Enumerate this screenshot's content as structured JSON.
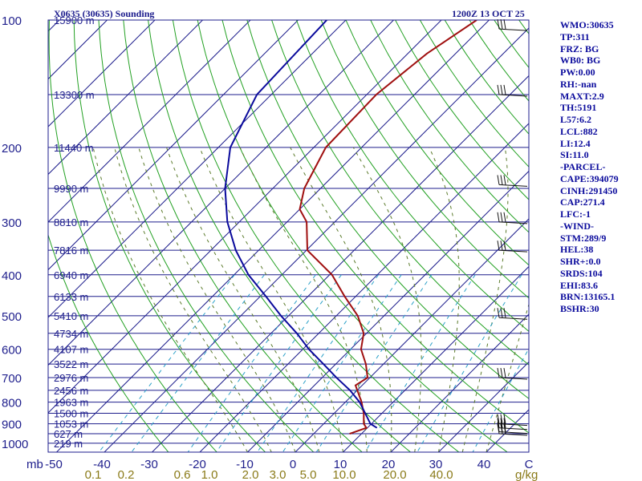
{
  "title_left": "X0635 (30635) Sounding",
  "title_right": "1200Z 13 OCT 25",
  "chart_data": {
    "type": "line",
    "diagram": "skew-T log-P",
    "pressure_axis": {
      "unit_label": "mb",
      "ticks": [
        100,
        200,
        300,
        400,
        500,
        600,
        700,
        800,
        900,
        1000
      ],
      "range": [
        100,
        1050
      ],
      "scale": "log"
    },
    "temperature_axis": {
      "ticks": [
        "-50",
        "-40",
        "-30",
        "-20",
        "-10",
        "0",
        "10",
        "20",
        "30",
        "40",
        "C"
      ]
    },
    "mixing_ratio_axis": {
      "ticks": [
        "0.1",
        "0.2",
        "0.6",
        "1.0",
        "2.0",
        "3.0",
        "5.0",
        "10.0",
        "20.0",
        "40.0"
      ],
      "unit_label": "g/kg"
    },
    "height_labels": [
      {
        "p": 100,
        "label": "15900 m"
      },
      {
        "p": 150,
        "label": "13300 m"
      },
      {
        "p": 200,
        "label": "11440 m"
      },
      {
        "p": 250,
        "label": "9990 m"
      },
      {
        "p": 300,
        "label": "8810 m"
      },
      {
        "p": 350,
        "label": "7816 m"
      },
      {
        "p": 400,
        "label": "6940 m"
      },
      {
        "p": 450,
        "label": "6133 m"
      },
      {
        "p": 500,
        "label": "5410 m"
      },
      {
        "p": 550,
        "label": "4734 m"
      },
      {
        "p": 600,
        "label": "4107 m"
      },
      {
        "p": 650,
        "label": "3522 m"
      },
      {
        "p": 700,
        "label": "2976 m"
      },
      {
        "p": 750,
        "label": "2456 m"
      },
      {
        "p": 800,
        "label": "1963 m"
      },
      {
        "p": 850,
        "label": "1500 m"
      },
      {
        "p": 900,
        "label": "1053 m"
      },
      {
        "p": 950,
        "label": "627 m"
      },
      {
        "p": 1000,
        "label": "219 m"
      }
    ],
    "series": [
      {
        "color": "#a01010",
        "points": [
          {
            "p": 100,
            "t": -52.6
          },
          {
            "p": 120,
            "t": -56.0
          },
          {
            "p": 150,
            "t": -58.0
          },
          {
            "p": 200,
            "t": -57.5
          },
          {
            "p": 250,
            "t": -53.4
          },
          {
            "p": 280,
            "t": -50.0
          },
          {
            "p": 300,
            "t": -45.9
          },
          {
            "p": 350,
            "t": -39.8
          },
          {
            "p": 400,
            "t": -29.5
          },
          {
            "p": 450,
            "t": -22.3
          },
          {
            "p": 500,
            "t": -15.5
          },
          {
            "p": 550,
            "t": -10.6
          },
          {
            "p": 600,
            "t": -7.8
          },
          {
            "p": 650,
            "t": -3.7
          },
          {
            "p": 700,
            "t": -0.5
          },
          {
            "p": 730,
            "t": -1.4
          },
          {
            "p": 800,
            "t": 3.4
          },
          {
            "p": 850,
            "t": 6.2
          },
          {
            "p": 900,
            "t": 8.4
          },
          {
            "p": 920,
            "t": 9.8
          },
          {
            "p": 950,
            "t": 7.5
          }
        ]
      },
      {
        "color": "#0a0a9c",
        "points": [
          {
            "p": 100,
            "t": -84.0
          },
          {
            "p": 150,
            "t": -83.0
          },
          {
            "p": 200,
            "t": -77.5
          },
          {
            "p": 250,
            "t": -70.0
          },
          {
            "p": 300,
            "t": -62.5
          },
          {
            "p": 350,
            "t": -54.8
          },
          {
            "p": 400,
            "t": -47.0
          },
          {
            "p": 450,
            "t": -38.8
          },
          {
            "p": 500,
            "t": -31.6
          },
          {
            "p": 550,
            "t": -24.6
          },
          {
            "p": 600,
            "t": -18.7
          },
          {
            "p": 650,
            "t": -12.6
          },
          {
            "p": 700,
            "t": -7.0
          },
          {
            "p": 750,
            "t": -1.5
          },
          {
            "p": 800,
            "t": 3.0
          },
          {
            "p": 850,
            "t": 6.5
          },
          {
            "p": 900,
            "t": 9.8
          },
          {
            "p": 920,
            "t": 12.0
          }
        ]
      }
    ],
    "wind_barbs_p": [
      105,
      150,
      245,
      300,
      350,
      505,
      700,
      900,
      920,
      940,
      950
    ],
    "colors": {
      "isobar": "#1e1e8c",
      "isotherm": "#1e1e8c",
      "dry_adiabat": "#22a022",
      "moist_adiabat": "#5a7a2a",
      "mixing_ratio": "#2aa0c8",
      "axis_text": "#1e1e8c",
      "mixing_text": "#8a7a18"
    }
  },
  "indices": [
    "WMO:30635",
    "TP:311",
    "FRZ: BG",
    "WB0: BG",
    "PW:0.00",
    "RH:-nan",
    "MAXT:2.9",
    "TH:5191",
    "L57:6.2",
    "LCL:882",
    "LI:12.4",
    "SI:11.0",
    "-PARCEL-",
    "CAPE:394079",
    "CINH:291450",
    "CAP:271.4",
    "LFC:-1",
    "-WIND-",
    "STM:289/9",
    "HEL:38",
    "SHR+:0.0",
    "SRDS:104",
    "EHI:83.6",
    "BRN:13165.1",
    "BSHR:30"
  ]
}
